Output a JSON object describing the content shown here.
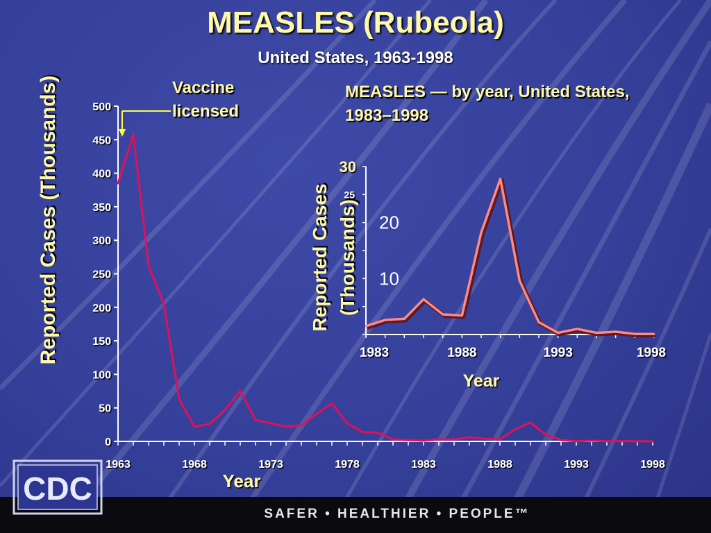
{
  "slide": {
    "title": "MEASLES (Rubeola)",
    "subtitle": "United States, 1963-1998",
    "annotation_vaccine": [
      "Vaccine",
      "licensed"
    ],
    "inset_title": "MEASLES — by year, United States, 1983–1998",
    "footer": "SAFER • HEALTHIER • PEOPLE™",
    "logo_text": "CDC",
    "colors": {
      "background": "#36419c",
      "title": "#fff8a8",
      "main_line": "#e0105a",
      "inset_line": "#ff8a80",
      "arrow": "#ffff40"
    }
  },
  "chart_data": [
    {
      "type": "line",
      "xlabel": "Year",
      "ylabel": "Reported Cases (Thousands)",
      "ylim": [
        0,
        500
      ],
      "xlim": [
        1963,
        1998
      ],
      "yticks": [
        0,
        50,
        100,
        150,
        200,
        250,
        300,
        350,
        400,
        450,
        500
      ],
      "xticks": [
        1963,
        1968,
        1973,
        1978,
        1983,
        1988,
        1993,
        1998
      ],
      "x": [
        1963,
        1964,
        1965,
        1966,
        1967,
        1968,
        1969,
        1970,
        1971,
        1972,
        1973,
        1974,
        1975,
        1976,
        1977,
        1978,
        1979,
        1980,
        1981,
        1982,
        1983,
        1984,
        1985,
        1986,
        1987,
        1988,
        1989,
        1990,
        1991,
        1992,
        1993,
        1994,
        1995,
        1996,
        1997,
        1998
      ],
      "y": [
        385,
        458,
        262,
        205,
        63,
        22,
        26,
        47,
        75,
        32,
        27,
        22,
        24,
        41,
        57,
        27,
        14,
        13,
        3,
        2,
        1,
        3,
        3,
        6,
        4,
        3,
        18,
        28,
        10,
        2,
        0.3,
        1,
        0.3,
        0.5,
        0.1,
        0.1
      ],
      "annotation": {
        "text": "Vaccine licensed",
        "x": 1963
      }
    },
    {
      "type": "line",
      "title": "MEASLES — by year, United States, 1983–1998",
      "xlabel": "Year",
      "ylabel": "Reported Cases (Thousands)",
      "ylim": [
        0,
        30
      ],
      "xlim": [
        1983,
        1998
      ],
      "yticks": [
        30,
        25
      ],
      "y_inline_labels": [
        20,
        10
      ],
      "xticks": [
        1983,
        1988,
        1993,
        1998
      ],
      "x": [
        1983,
        1984,
        1985,
        1986,
        1987,
        1988,
        1989,
        1990,
        1991,
        1992,
        1993,
        1994,
        1995,
        1996,
        1997,
        1998
      ],
      "y": [
        1.5,
        2.6,
        2.8,
        6.3,
        3.6,
        3.4,
        18.2,
        27.8,
        9.6,
        2.2,
        0.3,
        1.0,
        0.3,
        0.5,
        0.1,
        0.1
      ]
    }
  ]
}
